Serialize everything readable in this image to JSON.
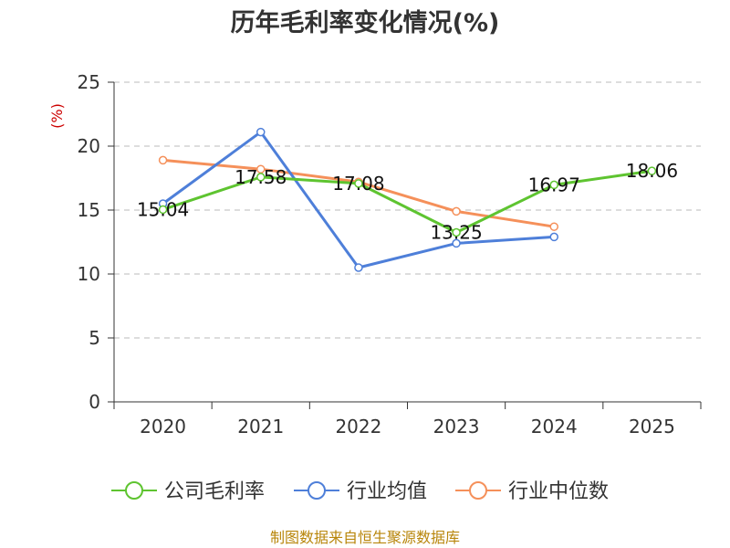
{
  "chart_data": {
    "type": "line",
    "title": "历年毛利率变化情况(%)",
    "unit_label": "(%)",
    "categories": [
      "2020",
      "2021",
      "2022",
      "2023",
      "2024",
      "2025"
    ],
    "ylim": [
      0,
      25
    ],
    "yticks": [
      0,
      5,
      10,
      15,
      20,
      25
    ],
    "grid": true,
    "legend_position": "bottom",
    "series": [
      {
        "name": "公司毛利率",
        "color": "#5ec430",
        "values": [
          15.04,
          17.58,
          17.08,
          13.25,
          16.97,
          18.06
        ],
        "labels": [
          "15.04",
          "17.58",
          "17.08",
          "13.25",
          "16.97",
          "18.06"
        ]
      },
      {
        "name": "行业均值",
        "color": "#4e7fd9",
        "values": [
          15.5,
          21.1,
          10.5,
          12.4,
          12.9,
          null
        ]
      },
      {
        "name": "行业中位数",
        "color": "#f5905a",
        "values": [
          18.9,
          18.2,
          17.2,
          14.9,
          13.7,
          null
        ]
      }
    ]
  },
  "source_text": "制图数据来自恒生聚源数据库"
}
